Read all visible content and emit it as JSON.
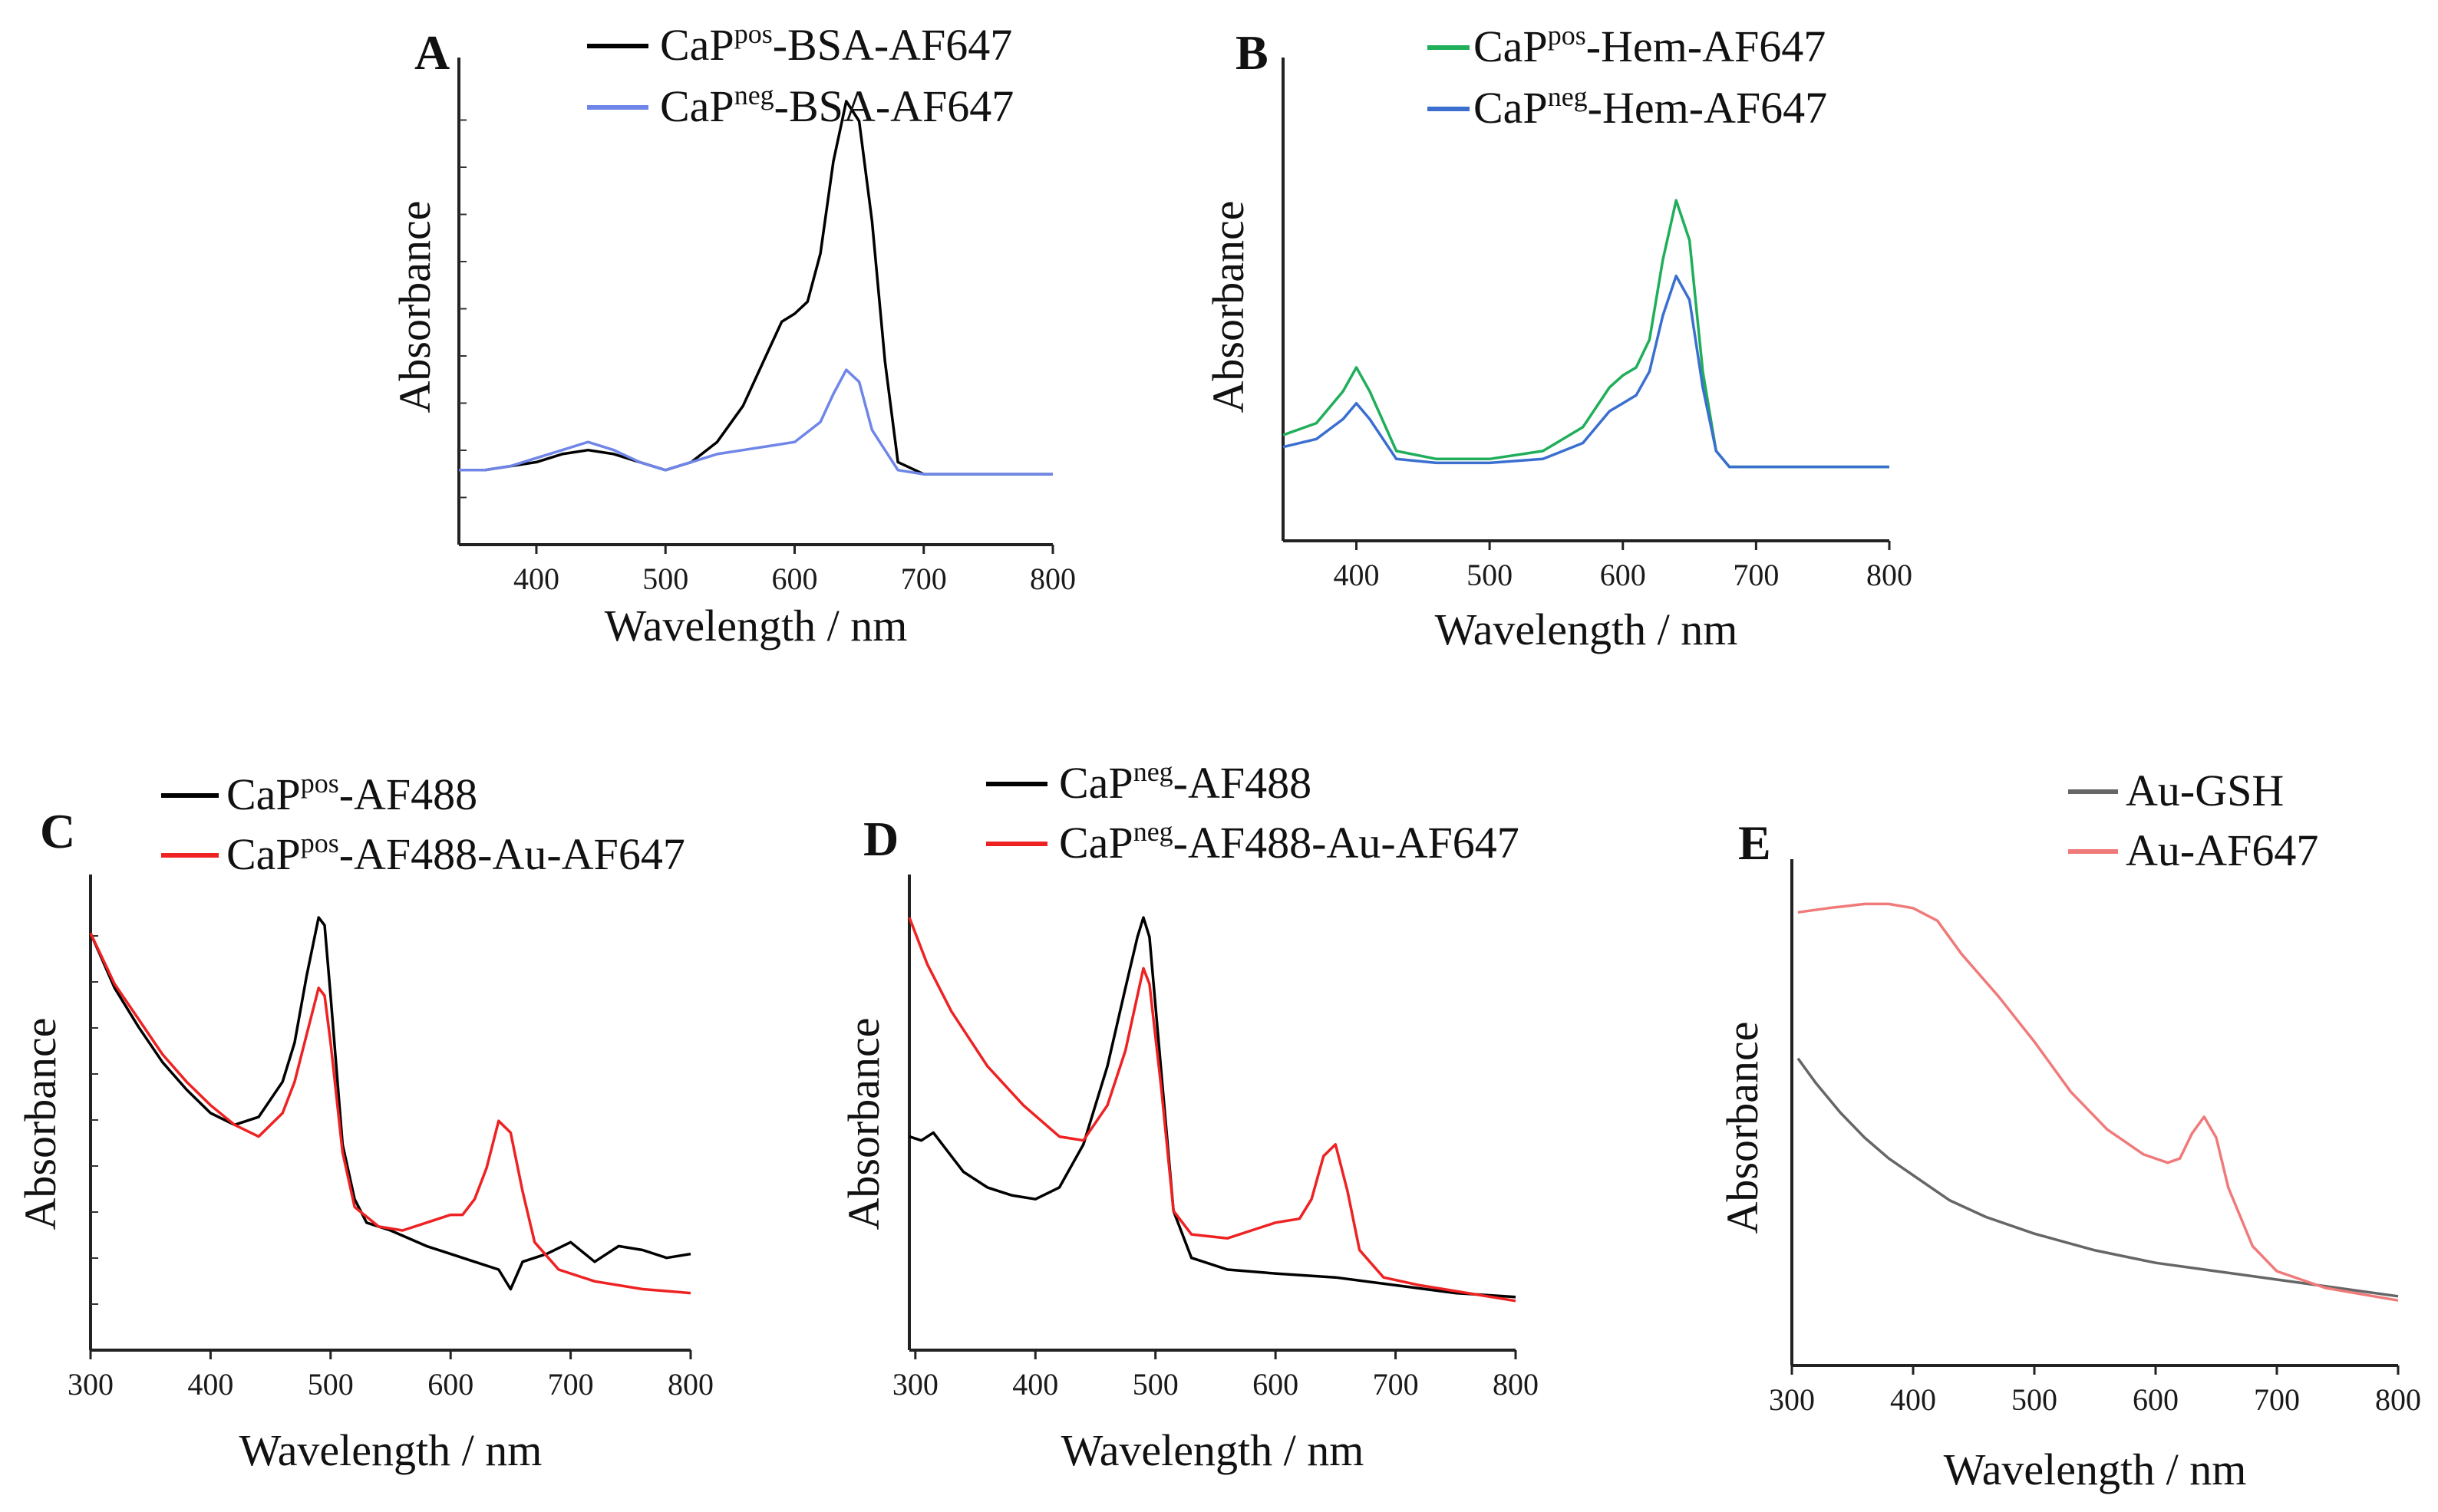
{
  "chart_data": [
    {
      "panel": "A",
      "type": "line",
      "xlabel": "Wavelength / nm",
      "ylabel": "Absorbance",
      "xlim": [
        340,
        800
      ],
      "ylim": [
        0,
        1
      ],
      "xticks": [
        "400",
        "500",
        "600",
        "700",
        "800"
      ],
      "legend_position": "top-right",
      "series": [
        {
          "name": "CaPpos-BSA-AF647",
          "label_base": "CaP",
          "label_sup": "pos",
          "label_rest": "-BSA-AF647",
          "color": "#000000",
          "x": [
            340,
            360,
            380,
            400,
            420,
            440,
            460,
            480,
            500,
            520,
            540,
            560,
            580,
            590,
            600,
            610,
            620,
            630,
            640,
            650,
            660,
            670,
            680,
            700,
            750,
            800
          ],
          "y": [
            0.08,
            0.08,
            0.09,
            0.1,
            0.12,
            0.13,
            0.12,
            0.1,
            0.08,
            0.1,
            0.15,
            0.24,
            0.38,
            0.45,
            0.47,
            0.5,
            0.62,
            0.85,
            1.0,
            0.95,
            0.7,
            0.35,
            0.1,
            0.07,
            0.07,
            0.07
          ]
        },
        {
          "name": "CaPneg-BSA-AF647",
          "label_base": "CaP",
          "label_sup": "neg",
          "label_rest": "-BSA-AF647",
          "color": "#6f86e8",
          "x": [
            340,
            360,
            380,
            400,
            420,
            440,
            460,
            480,
            500,
            520,
            540,
            560,
            580,
            600,
            620,
            630,
            640,
            650,
            660,
            680,
            700,
            750,
            800
          ],
          "y": [
            0.08,
            0.08,
            0.09,
            0.11,
            0.13,
            0.15,
            0.13,
            0.1,
            0.08,
            0.1,
            0.12,
            0.13,
            0.14,
            0.15,
            0.2,
            0.27,
            0.33,
            0.3,
            0.18,
            0.08,
            0.07,
            0.07,
            0.07
          ]
        }
      ]
    },
    {
      "panel": "B",
      "type": "line",
      "xlabel": "Wavelength / nm",
      "ylabel": "Absorbance",
      "xlim": [
        345,
        800
      ],
      "ylim": [
        0,
        1
      ],
      "xticks": [
        "400",
        "500",
        "600",
        "700",
        "800"
      ],
      "legend_position": "top-left",
      "series": [
        {
          "name": "CaPpos-Hem-AF647",
          "label_base": "CaP",
          "label_sup": "pos",
          "label_rest": "-Hem-AF647",
          "color": "#1fae5a",
          "x": [
            345,
            370,
            390,
            400,
            410,
            430,
            460,
            500,
            540,
            570,
            590,
            600,
            610,
            620,
            630,
            640,
            650,
            660,
            670,
            680,
            700,
            750,
            800
          ],
          "y": [
            0.16,
            0.19,
            0.27,
            0.33,
            0.27,
            0.12,
            0.1,
            0.1,
            0.12,
            0.18,
            0.28,
            0.31,
            0.33,
            0.4,
            0.6,
            0.75,
            0.65,
            0.32,
            0.12,
            0.08,
            0.08,
            0.08,
            0.08
          ]
        },
        {
          "name": "CaPneg-Hem-AF647",
          "label_base": "CaP",
          "label_sup": "neg",
          "label_rest": "-Hem-AF647",
          "color": "#3a6fd0",
          "x": [
            345,
            370,
            390,
            400,
            410,
            430,
            460,
            500,
            540,
            570,
            590,
            600,
            610,
            620,
            630,
            640,
            650,
            660,
            670,
            680,
            700,
            750,
            800
          ],
          "y": [
            0.13,
            0.15,
            0.2,
            0.24,
            0.2,
            0.1,
            0.09,
            0.09,
            0.1,
            0.14,
            0.22,
            0.24,
            0.26,
            0.32,
            0.46,
            0.56,
            0.5,
            0.28,
            0.12,
            0.08,
            0.08,
            0.08,
            0.08
          ]
        }
      ]
    },
    {
      "panel": "C",
      "type": "line",
      "xlabel": "Wavelength / nm",
      "ylabel": "Absorbance",
      "xlim": [
        300,
        800
      ],
      "ylim": [
        0,
        1
      ],
      "xticks": [
        "300",
        "400",
        "500",
        "600",
        "700",
        "800"
      ],
      "legend_position": "top",
      "series": [
        {
          "name": "CaPpos-AF488",
          "label_base": "CaP",
          "label_sup": "pos",
          "label_rest": "-AF488",
          "color": "#000000",
          "x": [
            300,
            320,
            340,
            360,
            380,
            400,
            420,
            440,
            460,
            470,
            480,
            490,
            495,
            500,
            510,
            520,
            530,
            550,
            580,
            600,
            620,
            640,
            650,
            660,
            680,
            700,
            720,
            740,
            760,
            780,
            800
          ],
          "y": [
            0.96,
            0.82,
            0.72,
            0.63,
            0.56,
            0.5,
            0.47,
            0.49,
            0.58,
            0.68,
            0.85,
            1.0,
            0.98,
            0.8,
            0.42,
            0.28,
            0.22,
            0.2,
            0.16,
            0.14,
            0.12,
            0.1,
            0.05,
            0.12,
            0.14,
            0.17,
            0.12,
            0.16,
            0.15,
            0.13,
            0.14
          ]
        },
        {
          "name": "CaPpos-AF488-Au-AF647",
          "label_base": "CaP",
          "label_sup": "pos",
          "label_rest": "-AF488-Au-AF647",
          "color": "#ee2222",
          "x": [
            300,
            320,
            340,
            360,
            380,
            400,
            420,
            440,
            460,
            470,
            480,
            490,
            495,
            500,
            510,
            520,
            540,
            560,
            580,
            600,
            610,
            620,
            630,
            640,
            650,
            660,
            670,
            690,
            720,
            760,
            800
          ],
          "y": [
            0.96,
            0.83,
            0.74,
            0.65,
            0.58,
            0.52,
            0.47,
            0.44,
            0.5,
            0.58,
            0.7,
            0.82,
            0.8,
            0.68,
            0.4,
            0.26,
            0.21,
            0.2,
            0.22,
            0.24,
            0.24,
            0.28,
            0.36,
            0.48,
            0.45,
            0.3,
            0.17,
            0.1,
            0.07,
            0.05,
            0.04
          ]
        }
      ]
    },
    {
      "panel": "D",
      "type": "line",
      "xlabel": "Wavelength / nm",
      "ylabel": "Absorbance",
      "xlim": [
        295,
        800
      ],
      "ylim": [
        0,
        1
      ],
      "xticks": [
        "300",
        "400",
        "500",
        "600",
        "700",
        "800"
      ],
      "legend_position": "top",
      "series": [
        {
          "name": "CaPneg-AF488",
          "label_base": "CaP",
          "label_sup": "neg",
          "label_rest": "-AF488",
          "color": "#000000",
          "x": [
            295,
            305,
            315,
            325,
            340,
            360,
            380,
            400,
            420,
            440,
            460,
            475,
            485,
            490,
            495,
            505,
            515,
            530,
            560,
            600,
            650,
            700,
            750,
            800
          ],
          "y": [
            0.44,
            0.43,
            0.45,
            0.41,
            0.35,
            0.31,
            0.29,
            0.28,
            0.31,
            0.42,
            0.62,
            0.82,
            0.95,
            1.0,
            0.95,
            0.6,
            0.25,
            0.13,
            0.1,
            0.09,
            0.08,
            0.06,
            0.04,
            0.03
          ]
        },
        {
          "name": "CaPneg-AF488-Au-AF647",
          "label_base": "CaP",
          "label_sup": "neg",
          "label_rest": "-AF488-Au-AF647",
          "color": "#ee2222",
          "x": [
            295,
            310,
            330,
            360,
            390,
            420,
            440,
            460,
            475,
            485,
            490,
            495,
            505,
            515,
            530,
            560,
            580,
            600,
            620,
            630,
            640,
            650,
            660,
            670,
            690,
            720,
            760,
            800
          ],
          "y": [
            1.0,
            0.88,
            0.76,
            0.62,
            0.52,
            0.44,
            0.43,
            0.52,
            0.66,
            0.8,
            0.87,
            0.83,
            0.56,
            0.25,
            0.19,
            0.18,
            0.2,
            0.22,
            0.23,
            0.28,
            0.39,
            0.42,
            0.3,
            0.15,
            0.08,
            0.06,
            0.04,
            0.02
          ]
        }
      ]
    },
    {
      "panel": "E",
      "type": "line",
      "xlabel": "Wavelength / nm",
      "ylabel": "Absorbance",
      "xlim": [
        300,
        800
      ],
      "ylim": [
        0,
        1
      ],
      "xticks": [
        "300",
        "400",
        "500",
        "600",
        "700",
        "800"
      ],
      "legend_position": "top-right",
      "series": [
        {
          "name": "Au-GSH",
          "label_base": "Au-GSH",
          "label_sup": "",
          "label_rest": "",
          "color": "#666666",
          "x": [
            305,
            320,
            340,
            360,
            380,
            400,
            430,
            460,
            500,
            550,
            600,
            650,
            700,
            750,
            800
          ],
          "y": [
            0.63,
            0.57,
            0.5,
            0.44,
            0.39,
            0.35,
            0.29,
            0.25,
            0.21,
            0.17,
            0.14,
            0.12,
            0.1,
            0.08,
            0.06
          ]
        },
        {
          "name": "Au-AF647",
          "label_base": "Au-AF647",
          "label_sup": "",
          "label_rest": "",
          "color": "#f07a7a",
          "x": [
            305,
            330,
            360,
            380,
            400,
            420,
            440,
            470,
            500,
            530,
            560,
            590,
            610,
            620,
            630,
            640,
            650,
            660,
            680,
            700,
            740,
            780,
            800
          ],
          "y": [
            0.98,
            0.99,
            1.0,
            1.0,
            0.99,
            0.96,
            0.88,
            0.78,
            0.67,
            0.55,
            0.46,
            0.4,
            0.38,
            0.39,
            0.45,
            0.49,
            0.44,
            0.32,
            0.18,
            0.12,
            0.08,
            0.06,
            0.05
          ]
        }
      ]
    }
  ]
}
